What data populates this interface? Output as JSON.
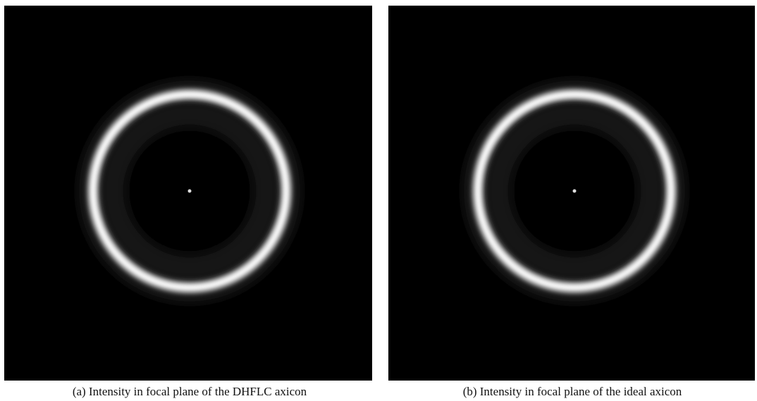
{
  "figures": [
    {
      "caption": "(a) Intensity in focal plane of the DHFLC axicon"
    },
    {
      "caption": "(b) Intensity in focal plane of the ideal axicon"
    }
  ]
}
